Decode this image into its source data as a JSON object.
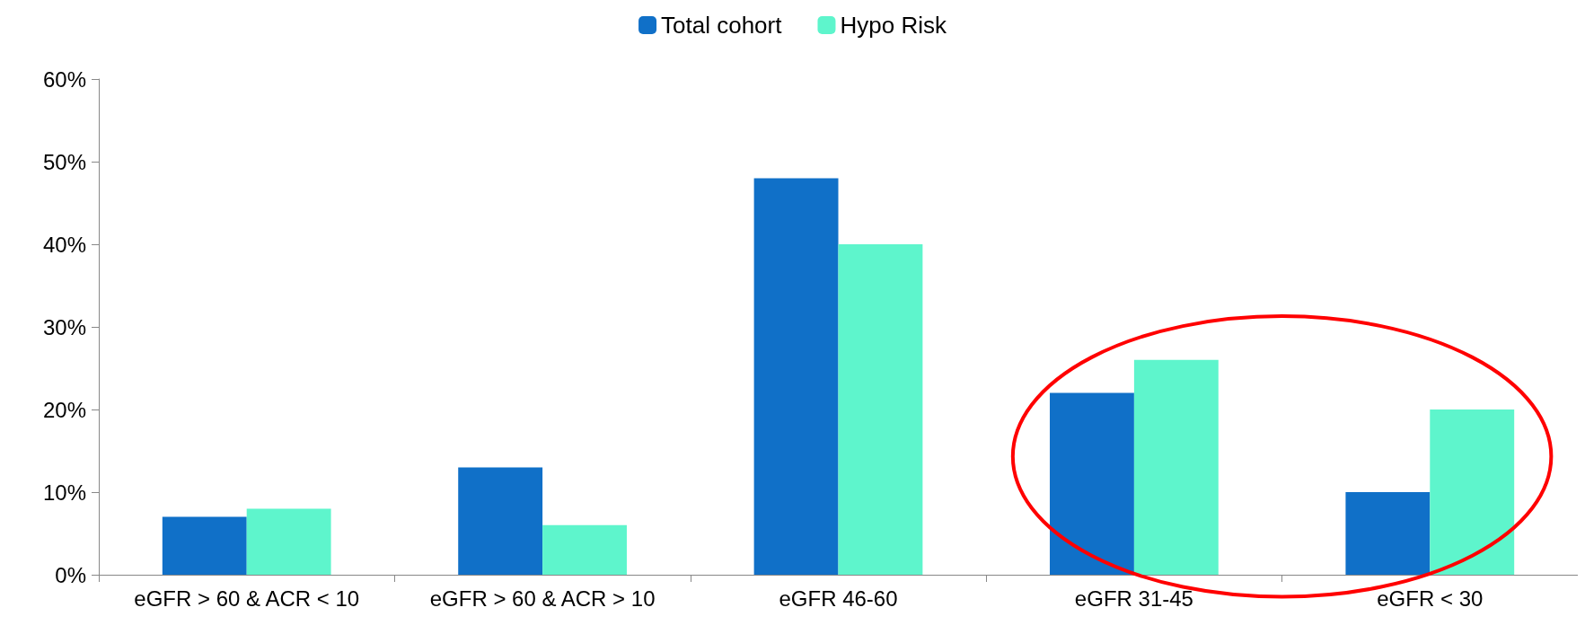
{
  "chart_data": {
    "type": "bar",
    "categories": [
      "eGFR > 60 & ACR < 10",
      "eGFR > 60 & ACR > 10",
      "eGFR 46-60",
      "eGFR 31-45",
      "eGFR < 30"
    ],
    "series": [
      {
        "name": "Total cohort",
        "color": "#1070c8",
        "values": [
          7,
          13,
          48,
          22,
          10
        ]
      },
      {
        "name": "Hypo Risk",
        "color": "#5ef5cc",
        "values": [
          8,
          6,
          40,
          26,
          20
        ]
      }
    ],
    "ylim": [
      0,
      60
    ],
    "yticks": [
      {
        "value": 0,
        "label": "0%"
      },
      {
        "value": 10,
        "label": "10%"
      },
      {
        "value": 20,
        "label": "20%"
      },
      {
        "value": 30,
        "label": "30%"
      },
      {
        "value": 40,
        "label": "40%"
      },
      {
        "value": 50,
        "label": "50%"
      },
      {
        "value": 60,
        "label": "60%"
      }
    ],
    "grid": false,
    "legend": "top"
  }
}
